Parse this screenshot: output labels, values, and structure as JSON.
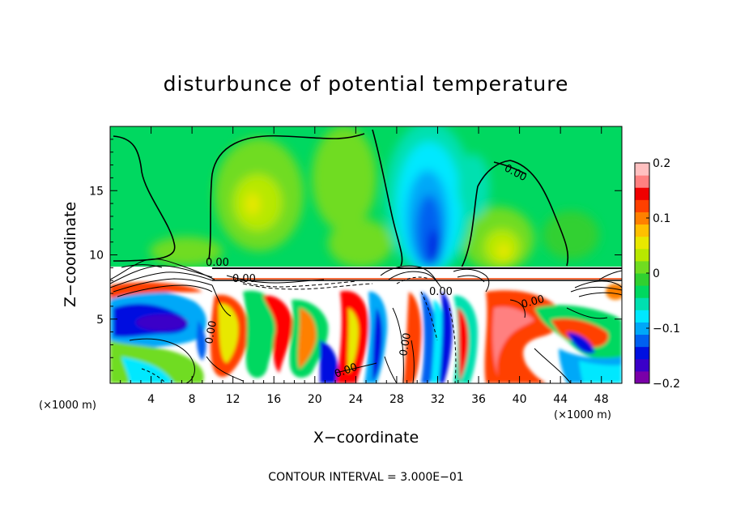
{
  "chart_data": {
    "type": "heatmap",
    "title": "disturbunce of potential temperature",
    "xlabel": "X−coordinate",
    "ylabel": "Z−coordinate",
    "x_unit": "(×1000 m)",
    "y_unit": "(×1000 m)",
    "xlim": [
      0,
      50
    ],
    "ylim": [
      0,
      20
    ],
    "x_ticks": [
      4,
      8,
      12,
      16,
      20,
      24,
      28,
      32,
      36,
      40,
      44,
      48
    ],
    "y_ticks": [
      5,
      10,
      15
    ],
    "x_tick_labels": [
      "4",
      "8",
      "12",
      "16",
      "20",
      "24",
      "28",
      "32",
      "36",
      "40",
      "44",
      "48"
    ],
    "y_tick_labels": [
      "5",
      "10",
      "15"
    ],
    "colorbar": {
      "range": [
        -0.2,
        0.2
      ],
      "ticks": [
        -0.2,
        -0.1,
        0,
        0.1,
        0.2
      ],
      "tick_labels": [
        "−0.2",
        "−0.1",
        "0",
        "0.1",
        "0.2"
      ],
      "colors": [
        "#7a00a8",
        "#3a00c8",
        "#0010e0",
        "#0060f0",
        "#00a8f8",
        "#00e8ff",
        "#00e0b0",
        "#00d860",
        "#30d030",
        "#70dc20",
        "#b8e800",
        "#e8e800",
        "#ffc000",
        "#ff8000",
        "#ff4000",
        "#f00000",
        "#ff8080",
        "#ffc0c0"
      ]
    },
    "contour_labels": [
      "0.00",
      "0.00",
      "0.00",
      "0.00",
      "0.00",
      "0.00",
      "0.00",
      "0.00"
    ],
    "contour_interval_text": "CONTOUR INTERVAL = 3.000E−01",
    "grid": false
  },
  "colors": {
    "background": "#ffffff",
    "axis": "#000000"
  }
}
